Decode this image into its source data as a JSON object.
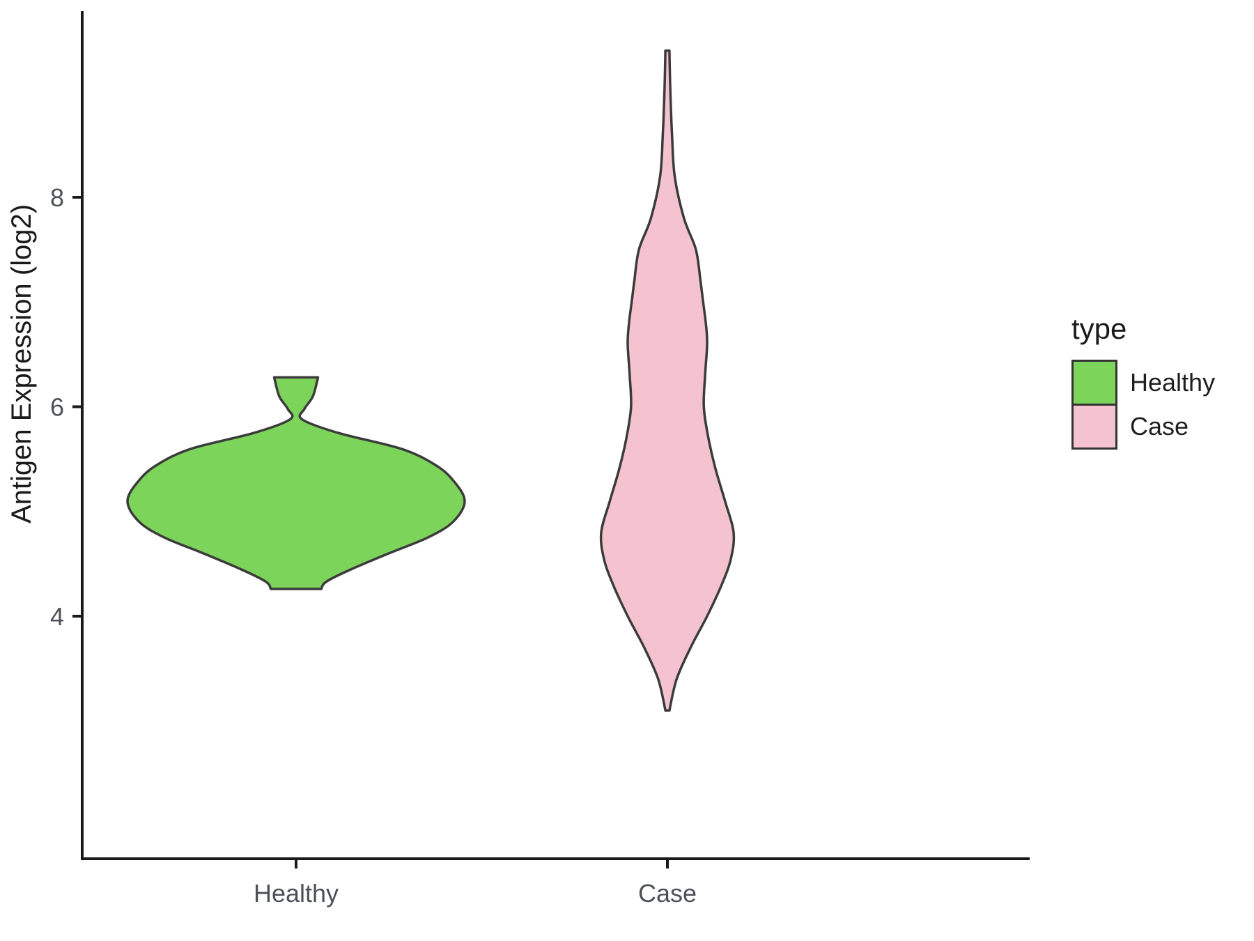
{
  "figure": {
    "background": "#ffffff"
  },
  "chart_data": {
    "type": "violin",
    "title": "",
    "xlabel": "",
    "ylabel": "Antigen Expression (log2)",
    "categories": [
      "Healthy",
      "Case"
    ],
    "yticks": [
      4,
      6,
      8
    ],
    "ylim": [
      2.8,
      9.6
    ],
    "grid": false,
    "axis_color": "#1a1a1a",
    "tick_label_color": "#4d5157",
    "legend": {
      "title": "type",
      "position": "right",
      "entries": [
        {
          "label": "Healthy",
          "color": "#7cd45b"
        },
        {
          "label": "Case",
          "color": "#f5c3d0"
        }
      ]
    },
    "series": [
      {
        "name": "Healthy",
        "fill": "#7cd45b",
        "stroke": "#3b3b3b",
        "profile": [
          [
            6.28,
            0.13
          ],
          [
            6.1,
            0.1
          ],
          [
            5.98,
            0.05
          ],
          [
            5.88,
            0.035
          ],
          [
            5.75,
            0.25
          ],
          [
            5.6,
            0.62
          ],
          [
            5.45,
            0.82
          ],
          [
            5.3,
            0.93
          ],
          [
            5.1,
            1.0
          ],
          [
            4.9,
            0.93
          ],
          [
            4.75,
            0.78
          ],
          [
            4.6,
            0.55
          ],
          [
            4.45,
            0.33
          ],
          [
            4.33,
            0.18
          ],
          [
            4.26,
            0.15
          ]
        ]
      },
      {
        "name": "Case",
        "fill": "#f5c3d0",
        "stroke": "#3b3b3b",
        "profile": [
          [
            9.4,
            0.03
          ],
          [
            9.0,
            0.045
          ],
          [
            8.6,
            0.07
          ],
          [
            8.2,
            0.11
          ],
          [
            7.8,
            0.25
          ],
          [
            7.5,
            0.43
          ],
          [
            7.2,
            0.5
          ],
          [
            7.0,
            0.54
          ],
          [
            6.8,
            0.58
          ],
          [
            6.6,
            0.6
          ],
          [
            6.3,
            0.57
          ],
          [
            6.0,
            0.55
          ],
          [
            5.7,
            0.62
          ],
          [
            5.4,
            0.73
          ],
          [
            5.1,
            0.87
          ],
          [
            4.8,
            1.0
          ],
          [
            4.55,
            0.96
          ],
          [
            4.3,
            0.82
          ],
          [
            4.0,
            0.6
          ],
          [
            3.7,
            0.35
          ],
          [
            3.4,
            0.14
          ],
          [
            3.1,
            0.03
          ]
        ]
      }
    ]
  }
}
